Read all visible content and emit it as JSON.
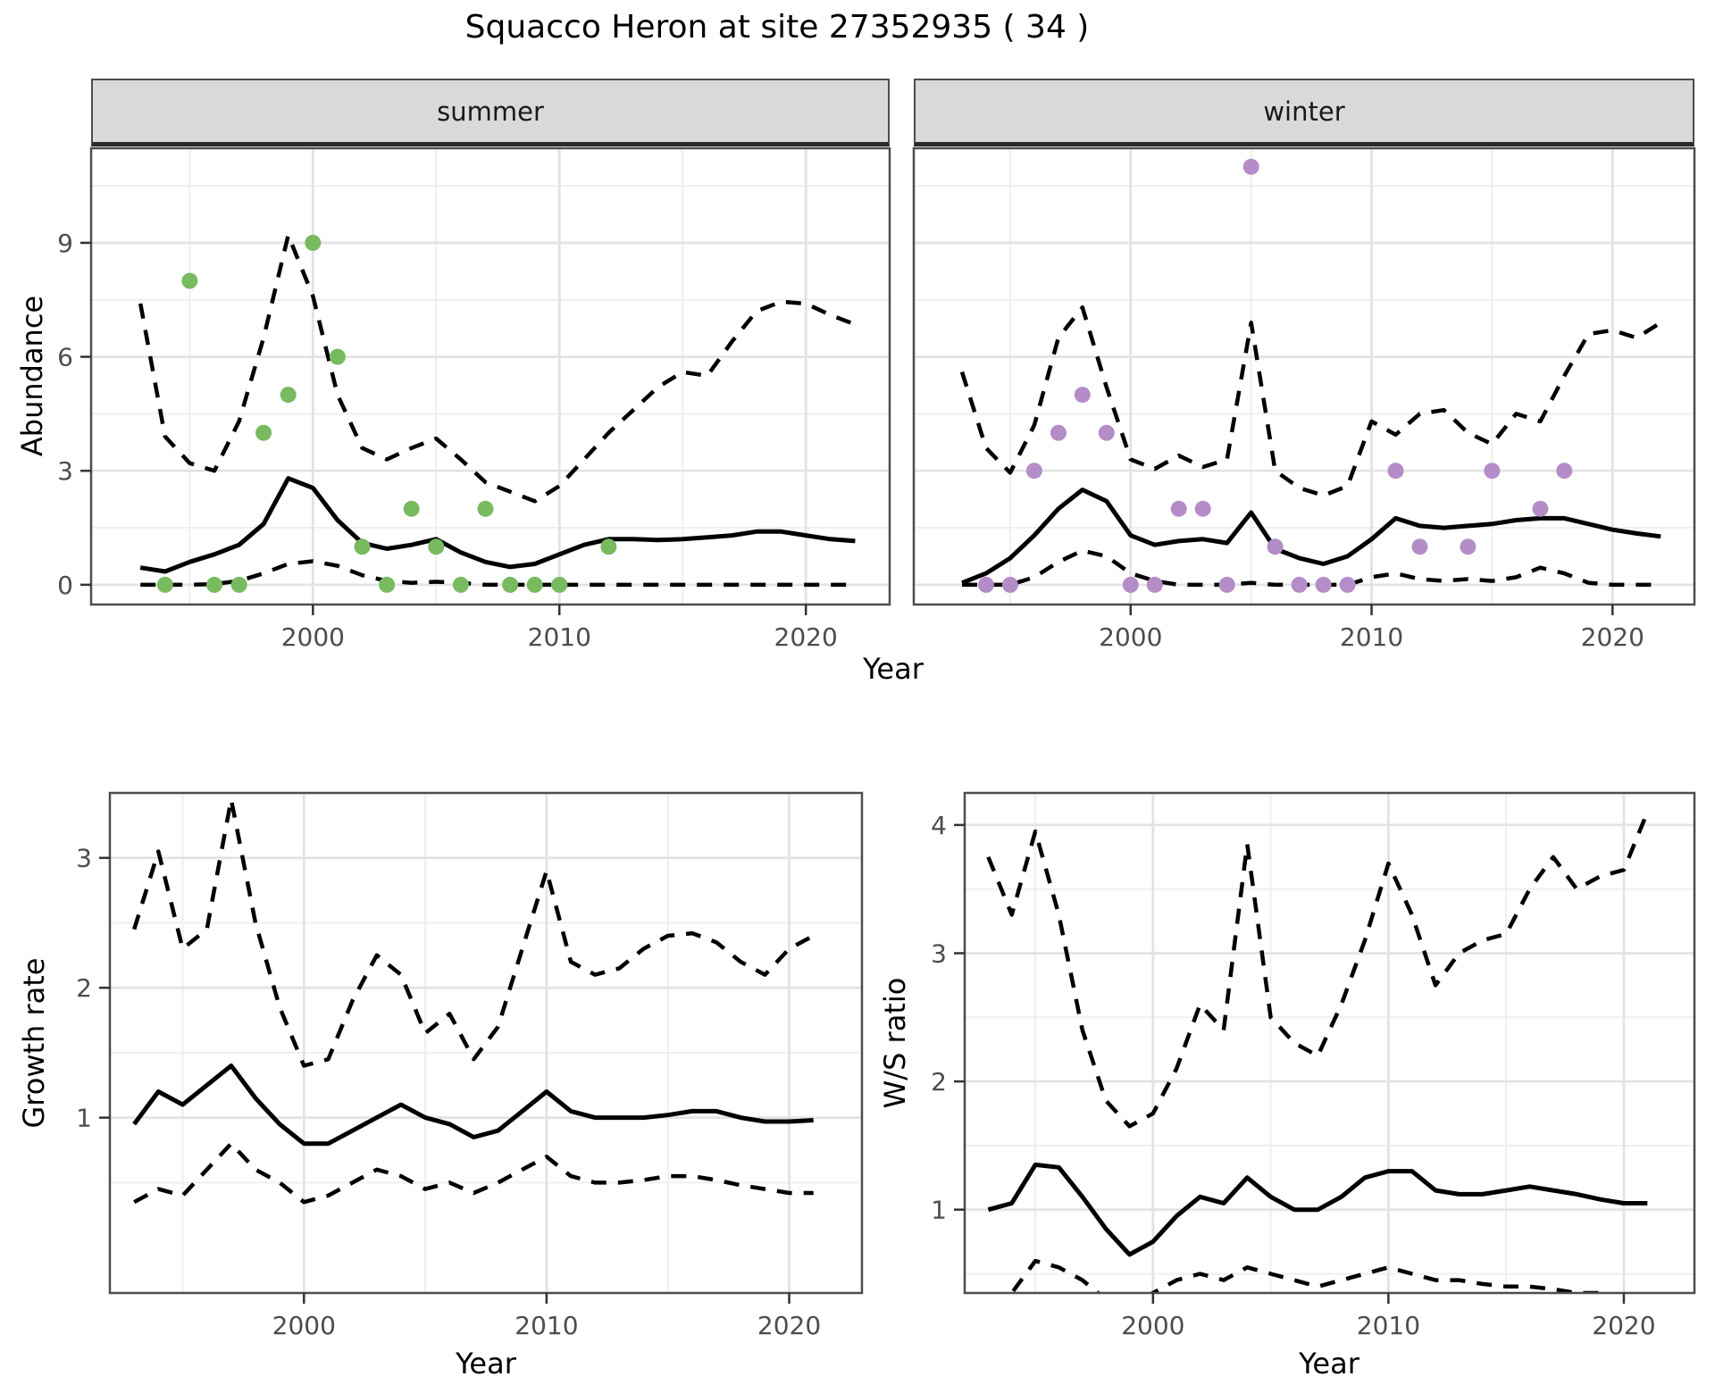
{
  "title": "Squacco Heron at site 27352935 ( 34 )",
  "colors": {
    "line": "#000000",
    "summer_points": "#78ba60",
    "winter_points": "#b48cc8",
    "strip_bg": "#d9d9d9",
    "grid_major": "#e3e3e3",
    "grid_minor": "#efefef",
    "tick_label": "#4d4d4d",
    "tick_mark": "#333333",
    "panel_border": "#4d4d4d",
    "panel_bg": "#ffffff"
  },
  "chart_data": [
    {
      "type": "line",
      "facet_label": "summer",
      "xlabel": "Year",
      "ylabel": "Abundance",
      "xlim": [
        1991,
        2023.4
      ],
      "ylim": [
        -0.52,
        11.49
      ],
      "xticks": [
        2000,
        2010,
        2020
      ],
      "xticks_minor": [
        1995,
        2005,
        2015
      ],
      "yticks": [
        0,
        3,
        6,
        9
      ],
      "yticks_minor": [
        1.5,
        4.5,
        7.5,
        10.5
      ],
      "grid": true,
      "legend": "none",
      "series": [
        {
          "name": "median",
          "linestyle": "solid",
          "x": [
            1993,
            1994,
            1995,
            1996,
            1997,
            1998,
            1999,
            2000,
            2001,
            2002,
            2003,
            2004,
            2005,
            2006,
            2007,
            2008,
            2009,
            2010,
            2011,
            2012,
            2013,
            2014,
            2015,
            2016,
            2017,
            2018,
            2019,
            2020,
            2021,
            2022
          ],
          "y": [
            0.45,
            0.35,
            0.6,
            0.8,
            1.05,
            1.6,
            2.8,
            2.55,
            1.7,
            1.1,
            0.95,
            1.05,
            1.2,
            0.85,
            0.6,
            0.47,
            0.55,
            0.8,
            1.05,
            1.2,
            1.2,
            1.18,
            1.2,
            1.25,
            1.3,
            1.4,
            1.4,
            1.3,
            1.2,
            1.15
          ]
        },
        {
          "name": "upper_ci",
          "linestyle": "dashed",
          "x": [
            1993,
            1994,
            1995,
            1996,
            1997,
            1998,
            1999,
            2000,
            2001,
            2002,
            2003,
            2004,
            2005,
            2006,
            2007,
            2008,
            2009,
            2010,
            2011,
            2012,
            2013,
            2014,
            2015,
            2016,
            2017,
            2018,
            2019,
            2020,
            2021,
            2022
          ],
          "y": [
            7.4,
            3.9,
            3.2,
            3.0,
            4.3,
            6.5,
            9.2,
            7.6,
            5.0,
            3.6,
            3.3,
            3.6,
            3.85,
            3.3,
            2.7,
            2.45,
            2.2,
            2.6,
            3.3,
            4.0,
            4.6,
            5.2,
            5.6,
            5.5,
            6.4,
            7.2,
            7.45,
            7.4,
            7.1,
            6.85
          ]
        },
        {
          "name": "lower_ci",
          "linestyle": "dashed",
          "x": [
            1993,
            1994,
            1995,
            1996,
            1997,
            1998,
            1999,
            2000,
            2001,
            2002,
            2003,
            2004,
            2005,
            2006,
            2007,
            2008,
            2009,
            2010,
            2011,
            2012,
            2013,
            2014,
            2015,
            2016,
            2017,
            2018,
            2019,
            2020,
            2021,
            2022
          ],
          "y": [
            0,
            0,
            0,
            0.02,
            0.1,
            0.3,
            0.55,
            0.62,
            0.5,
            0.25,
            0.1,
            0.05,
            0.08,
            0.05,
            0,
            0,
            0,
            0,
            0,
            0,
            0,
            0,
            0,
            0,
            0,
            0,
            0,
            0,
            0,
            0
          ]
        }
      ],
      "points": {
        "name": "summer-observations",
        "color": "#78ba60",
        "x": [
          1994,
          1995,
          1996,
          1997,
          1998,
          1999,
          2000,
          2001,
          2002,
          2003,
          2004,
          2005,
          2006,
          2007,
          2008,
          2009,
          2010,
          2012
        ],
        "y": [
          0,
          8,
          0,
          0,
          4,
          5,
          9,
          6,
          1,
          0,
          2,
          1,
          0,
          2,
          0,
          0,
          0,
          1
        ]
      }
    },
    {
      "type": "line",
      "facet_label": "winter",
      "xlabel": "Year",
      "ylabel": "Abundance",
      "xlim": [
        1991,
        2023.4
      ],
      "ylim": [
        -0.52,
        11.49
      ],
      "xticks": [
        2000,
        2010,
        2020
      ],
      "xticks_minor": [
        1995,
        2005,
        2015
      ],
      "yticks": [
        0,
        3,
        6,
        9
      ],
      "yticks_minor": [
        1.5,
        4.5,
        7.5,
        10.5
      ],
      "grid": true,
      "legend": "none",
      "series": [
        {
          "name": "median",
          "linestyle": "solid",
          "x": [
            1993,
            1994,
            1995,
            1996,
            1997,
            1998,
            1999,
            2000,
            2001,
            2002,
            2003,
            2004,
            2005,
            2006,
            2007,
            2008,
            2009,
            2010,
            2011,
            2012,
            2013,
            2014,
            2015,
            2016,
            2017,
            2018,
            2019,
            2020,
            2021,
            2022
          ],
          "y": [
            0.05,
            0.3,
            0.7,
            1.3,
            2.0,
            2.5,
            2.2,
            1.3,
            1.05,
            1.15,
            1.2,
            1.1,
            1.9,
            0.95,
            0.7,
            0.55,
            0.75,
            1.2,
            1.75,
            1.55,
            1.5,
            1.55,
            1.6,
            1.7,
            1.75,
            1.75,
            1.6,
            1.45,
            1.35,
            1.27
          ]
        },
        {
          "name": "upper_ci",
          "linestyle": "dashed",
          "x": [
            1993,
            1994,
            1995,
            1996,
            1997,
            1998,
            1999,
            2000,
            2001,
            2002,
            2003,
            2004,
            2005,
            2006,
            2007,
            2008,
            2009,
            2010,
            2011,
            2012,
            2013,
            2014,
            2015,
            2016,
            2017,
            2018,
            2019,
            2020,
            2021,
            2022
          ],
          "y": [
            5.6,
            3.6,
            2.95,
            4.2,
            6.5,
            7.3,
            5.2,
            3.3,
            3.05,
            3.4,
            3.1,
            3.3,
            6.9,
            3.0,
            2.55,
            2.35,
            2.6,
            4.3,
            3.95,
            4.5,
            4.6,
            4.0,
            3.7,
            4.5,
            4.3,
            5.5,
            6.6,
            6.7,
            6.5,
            6.9
          ]
        },
        {
          "name": "lower_ci",
          "linestyle": "dashed",
          "x": [
            1993,
            1994,
            1995,
            1996,
            1997,
            1998,
            1999,
            2000,
            2001,
            2002,
            2003,
            2004,
            2005,
            2006,
            2007,
            2008,
            2009,
            2010,
            2011,
            2012,
            2013,
            2014,
            2015,
            2016,
            2017,
            2018,
            2019,
            2020,
            2021,
            2022
          ],
          "y": [
            0,
            0,
            0,
            0.2,
            0.6,
            0.9,
            0.75,
            0.3,
            0.1,
            0,
            0,
            0,
            0.05,
            0,
            0,
            0,
            0,
            0.2,
            0.3,
            0.15,
            0.1,
            0.15,
            0.1,
            0.2,
            0.45,
            0.3,
            0.05,
            0,
            0,
            0
          ]
        }
      ],
      "points": {
        "name": "winter-observations",
        "color": "#b48cc8",
        "x": [
          1994,
          1995,
          1996,
          1997,
          1998,
          1999,
          2000,
          2001,
          2002,
          2003,
          2004,
          2005,
          2006,
          2007,
          2008,
          2009,
          2011,
          2012,
          2014,
          2015,
          2017,
          2018
        ],
        "y": [
          0,
          0,
          3,
          4,
          5,
          4,
          0,
          0,
          2,
          2,
          0,
          11,
          1,
          0,
          0,
          0,
          3,
          1,
          1,
          3,
          2,
          3
        ]
      }
    },
    {
      "type": "line",
      "facet_label": "",
      "xlabel": "Year",
      "ylabel": "Growth rate",
      "xlim": [
        1992,
        2023
      ],
      "ylim": [
        -0.35,
        3.5
      ],
      "xticks": [
        2000,
        2010,
        2020
      ],
      "xticks_minor": [
        1995,
        2005,
        2015
      ],
      "yticks": [
        1,
        2,
        3
      ],
      "yticks_minor": [
        0.5,
        1.5,
        2.5
      ],
      "grid": true,
      "legend": "none",
      "series": [
        {
          "name": "median",
          "linestyle": "solid",
          "x": [
            1993,
            1994,
            1995,
            1996,
            1997,
            1998,
            1999,
            2000,
            2001,
            2002,
            2003,
            2004,
            2005,
            2006,
            2007,
            2008,
            2009,
            2010,
            2011,
            2012,
            2013,
            2014,
            2015,
            2016,
            2017,
            2018,
            2019,
            2020,
            2021
          ],
          "y": [
            0.95,
            1.2,
            1.1,
            1.25,
            1.4,
            1.15,
            0.95,
            0.8,
            0.8,
            0.9,
            1.0,
            1.1,
            1.0,
            0.95,
            0.85,
            0.9,
            1.05,
            1.2,
            1.05,
            1.0,
            1.0,
            1.0,
            1.02,
            1.05,
            1.05,
            1.0,
            0.97,
            0.97,
            0.98
          ]
        },
        {
          "name": "upper_ci",
          "linestyle": "dashed",
          "x": [
            1993,
            1994,
            1995,
            1996,
            1997,
            1998,
            1999,
            2000,
            2001,
            2002,
            2003,
            2004,
            2005,
            2006,
            2007,
            2008,
            2009,
            2010,
            2011,
            2012,
            2013,
            2014,
            2015,
            2016,
            2017,
            2018,
            2019,
            2020,
            2021
          ],
          "y": [
            2.45,
            3.05,
            2.3,
            2.45,
            3.45,
            2.5,
            1.85,
            1.4,
            1.45,
            1.9,
            2.25,
            2.1,
            1.65,
            1.8,
            1.45,
            1.7,
            2.3,
            2.9,
            2.2,
            2.1,
            2.15,
            2.3,
            2.4,
            2.42,
            2.35,
            2.2,
            2.1,
            2.3,
            2.4
          ]
        },
        {
          "name": "lower_ci",
          "linestyle": "dashed",
          "x": [
            1993,
            1994,
            1995,
            1996,
            1997,
            1998,
            1999,
            2000,
            2001,
            2002,
            2003,
            2004,
            2005,
            2006,
            2007,
            2008,
            2009,
            2010,
            2011,
            2012,
            2013,
            2014,
            2015,
            2016,
            2017,
            2018,
            2019,
            2020,
            2021
          ],
          "y": [
            0.35,
            0.45,
            0.4,
            0.6,
            0.8,
            0.6,
            0.5,
            0.35,
            0.4,
            0.5,
            0.6,
            0.55,
            0.45,
            0.5,
            0.42,
            0.5,
            0.6,
            0.7,
            0.55,
            0.5,
            0.5,
            0.52,
            0.55,
            0.55,
            0.52,
            0.48,
            0.45,
            0.42,
            0.42
          ]
        }
      ]
    },
    {
      "type": "line",
      "facet_label": "",
      "xlabel": "Year",
      "ylabel": "W/S ratio",
      "xlim": [
        1992,
        2023
      ],
      "ylim": [
        0.35,
        4.25
      ],
      "xticks": [
        2000,
        2010,
        2020
      ],
      "xticks_minor": [
        1995,
        2005,
        2015
      ],
      "yticks": [
        1,
        2,
        3,
        4
      ],
      "yticks_minor": [
        0.5,
        1.5,
        2.5,
        3.5
      ],
      "grid": true,
      "legend": "none",
      "series": [
        {
          "name": "median",
          "linestyle": "solid",
          "x": [
            1993,
            1994,
            1995,
            1996,
            1997,
            1998,
            1999,
            2000,
            2001,
            2002,
            2003,
            2004,
            2005,
            2006,
            2007,
            2008,
            2009,
            2010,
            2011,
            2012,
            2013,
            2014,
            2015,
            2016,
            2017,
            2018,
            2019,
            2020,
            2021
          ],
          "y": [
            1.0,
            1.05,
            1.35,
            1.33,
            1.1,
            0.85,
            0.65,
            0.75,
            0.95,
            1.1,
            1.05,
            1.25,
            1.1,
            1.0,
            1.0,
            1.1,
            1.25,
            1.3,
            1.3,
            1.15,
            1.12,
            1.12,
            1.15,
            1.18,
            1.15,
            1.12,
            1.08,
            1.05,
            1.05
          ]
        },
        {
          "name": "upper_ci",
          "linestyle": "dashed",
          "x": [
            1993,
            1994,
            1995,
            1996,
            1997,
            1998,
            1999,
            2000,
            2001,
            2002,
            2003,
            2004,
            2005,
            2006,
            2007,
            2008,
            2009,
            2010,
            2011,
            2012,
            2013,
            2014,
            2015,
            2016,
            2017,
            2018,
            2019,
            2020,
            2021
          ],
          "y": [
            3.75,
            3.3,
            3.95,
            3.3,
            2.4,
            1.85,
            1.65,
            1.75,
            2.1,
            2.6,
            2.4,
            3.85,
            2.5,
            2.3,
            2.2,
            2.6,
            3.1,
            3.7,
            3.3,
            2.75,
            3.0,
            3.1,
            3.15,
            3.5,
            3.75,
            3.5,
            3.6,
            3.65,
            4.1
          ]
        },
        {
          "name": "lower_ci",
          "linestyle": "dashed",
          "x": [
            1993,
            1994,
            1995,
            1996,
            1997,
            1998,
            1999,
            2000,
            2001,
            2002,
            2003,
            2004,
            2005,
            2006,
            2007,
            2008,
            2009,
            2010,
            2011,
            2012,
            2013,
            2014,
            2015,
            2016,
            2017,
            2018,
            2019,
            2020,
            2021
          ],
          "y": [
            0.3,
            0.35,
            0.6,
            0.55,
            0.45,
            0.3,
            0.25,
            0.35,
            0.45,
            0.5,
            0.45,
            0.55,
            0.5,
            0.45,
            0.4,
            0.45,
            0.5,
            0.55,
            0.5,
            0.45,
            0.45,
            0.42,
            0.4,
            0.4,
            0.38,
            0.35,
            0.35,
            0.32,
            0.3
          ]
        }
      ]
    }
  ]
}
